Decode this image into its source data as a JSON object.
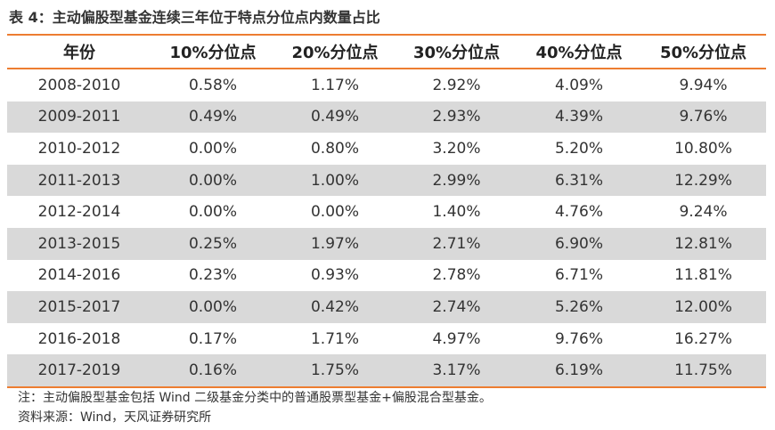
{
  "title": "表 4：主动偏股型基金连续三年位于特点分位点内数量占比",
  "table": {
    "headers": [
      "年份",
      "10%分位点",
      "20%分位点",
      "30%分位点",
      "40%分位点",
      "50%分位点"
    ],
    "rows": [
      [
        "2008-2010",
        "0.58%",
        "1.17%",
        "2.92%",
        "4.09%",
        "9.94%"
      ],
      [
        "2009-2011",
        "0.49%",
        "0.49%",
        "2.93%",
        "4.39%",
        "9.76%"
      ],
      [
        "2010-2012",
        "0.00%",
        "0.80%",
        "3.20%",
        "5.20%",
        "10.80%"
      ],
      [
        "2011-2013",
        "0.00%",
        "1.00%",
        "2.99%",
        "6.31%",
        "12.29%"
      ],
      [
        "2012-2014",
        "0.00%",
        "0.00%",
        "1.40%",
        "4.76%",
        "9.24%"
      ],
      [
        "2013-2015",
        "0.25%",
        "1.97%",
        "2.71%",
        "6.90%",
        "12.81%"
      ],
      [
        "2014-2016",
        "0.23%",
        "0.93%",
        "2.78%",
        "6.71%",
        "11.81%"
      ],
      [
        "2015-2017",
        "0.00%",
        "0.42%",
        "2.74%",
        "5.26%",
        "12.00%"
      ],
      [
        "2016-2018",
        "0.17%",
        "1.71%",
        "4.97%",
        "9.76%",
        "16.27%"
      ],
      [
        "2017-2019",
        "0.16%",
        "1.75%",
        "3.17%",
        "6.19%",
        "11.75%"
      ]
    ]
  },
  "note": "注：主动偏股型基金包括 Wind 二级基金分类中的普通股票型基金+偏股混合型基金。",
  "source": "资料来源：Wind，天风证券研究所",
  "colors": {
    "accent": "#ED7D31",
    "stripe": "#D9D9D9"
  }
}
